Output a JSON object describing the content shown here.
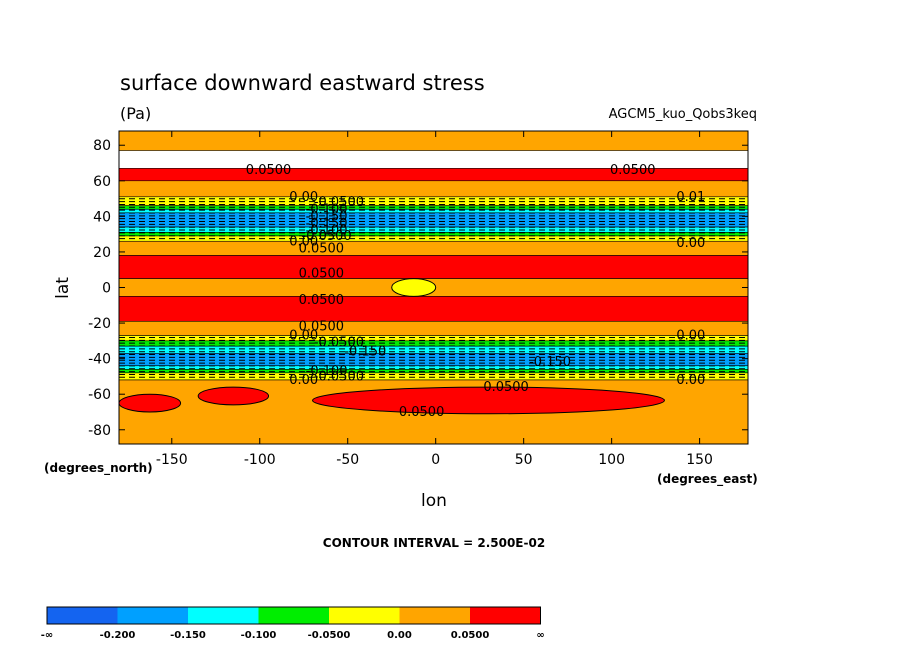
{
  "chart_data": {
    "type": "heatmap",
    "title": "surface downward eastward stress",
    "units": "(Pa)",
    "dataset": "AGCM5_kuo_Qobs3keq",
    "xlabel": "lon",
    "ylabel": "lat",
    "x_unit_note": "(degrees_east)",
    "y_unit_note": "(degrees_north)",
    "xlim": [
      -180,
      177.5
    ],
    "ylim": [
      -88,
      88
    ],
    "x_ticks": [
      -150,
      -100,
      -50,
      0,
      50,
      100,
      150
    ],
    "y_ticks": [
      80,
      60,
      40,
      20,
      0,
      -20,
      -40,
      -60,
      -80
    ],
    "grid": false,
    "contour_interval_text": "CONTOUR INTERVAL = 2.500E-02",
    "colorbar": {
      "colors": [
        "#1464f0",
        "#00a0ff",
        "#00ffff",
        "#00ee00",
        "#ffff00",
        "#ffa500",
        "#ff0000"
      ],
      "labels": [
        "-∞",
        "-0.200",
        "-0.150",
        "-0.100",
        "-0.0500",
        "0.00",
        "0.0500",
        "∞"
      ]
    },
    "zonal_bands": [
      {
        "lat": [
          77,
          88
        ],
        "level": "0.00 to 0.05"
      },
      {
        "lat": [
          60,
          67
        ],
        "level": "> 0.05"
      },
      {
        "lat": [
          51,
          60
        ],
        "level": "0.00 to 0.05"
      },
      {
        "lat": [
          46,
          51
        ],
        "level": "-0.05 to 0.00"
      },
      {
        "lat": [
          44,
          46
        ],
        "level": "-0.10 to -0.05"
      },
      {
        "lat": [
          42,
          44
        ],
        "level": "-0.15 to -0.10"
      },
      {
        "lat": [
          34,
          42
        ],
        "level": "-0.20 to -0.15"
      },
      {
        "lat": [
          31,
          34
        ],
        "level": "-0.15 to -0.10"
      },
      {
        "lat": [
          29,
          31
        ],
        "level": "-0.10 to -0.05"
      },
      {
        "lat": [
          26,
          29
        ],
        "level": "-0.05 to 0.00"
      },
      {
        "lat": [
          18,
          26
        ],
        "level": "0.00 to 0.05"
      },
      {
        "lat": [
          5,
          18
        ],
        "level": "> 0.05"
      },
      {
        "lat": [
          -5,
          5
        ],
        "level": "0.00 to 0.05"
      },
      {
        "lat": [
          -19,
          -5
        ],
        "level": "> 0.05"
      },
      {
        "lat": [
          -27,
          -19
        ],
        "level": "0.00 to 0.05"
      },
      {
        "lat": [
          -30,
          -27
        ],
        "level": "-0.05 to 0.00"
      },
      {
        "lat": [
          -33,
          -30
        ],
        "level": "-0.10 to -0.05"
      },
      {
        "lat": [
          -37,
          -33
        ],
        "level": "-0.15 to -0.10"
      },
      {
        "lat": [
          -44,
          -37
        ],
        "level": "-0.20 to -0.15"
      },
      {
        "lat": [
          -46,
          -44
        ],
        "level": "-0.15 to -0.10"
      },
      {
        "lat": [
          -48,
          -46
        ],
        "level": "-0.10 to -0.05"
      },
      {
        "lat": [
          -52,
          -48
        ],
        "level": "-0.05 to 0.00"
      },
      {
        "lat": [
          -88,
          -52
        ],
        "level": "0.00 to 0.05"
      }
    ],
    "features": [
      {
        "lon": [
          -25,
          0
        ],
        "lat": [
          -5,
          5
        ],
        "level": "-0.05 to 0.00"
      },
      {
        "lon": [
          -135,
          -95
        ],
        "lat": [
          -56,
          -66
        ],
        "level": "> 0.05"
      },
      {
        "lon": [
          -180,
          -145
        ],
        "lat": [
          -60,
          -70
        ],
        "level": "> 0.05"
      },
      {
        "lon": [
          -70,
          130
        ],
        "lat": [
          -56,
          -71
        ],
        "level": "> 0.05"
      }
    ],
    "contour_labels": [
      {
        "text": "0.0500",
        "lon": -95,
        "lat": 66
      },
      {
        "text": "0.0500",
        "lon": 112,
        "lat": 66
      },
      {
        "text": "0.00",
        "lon": -75,
        "lat": 51
      },
      {
        "text": "-0.0500",
        "lon": -55,
        "lat": 48
      },
      {
        "text": "-0.100",
        "lon": -62,
        "lat": 44
      },
      {
        "text": "-0.150",
        "lon": -62,
        "lat": 40
      },
      {
        "text": "-0.150",
        "lon": -62,
        "lat": 36
      },
      {
        "text": "-0.100",
        "lon": -62,
        "lat": 32
      },
      {
        "text": "-0.0500",
        "lon": -62,
        "lat": 29
      },
      {
        "text": "0.00",
        "lon": -75,
        "lat": 26
      },
      {
        "text": "0.0500",
        "lon": -65,
        "lat": 22
      },
      {
        "text": "0.01",
        "lon": 145,
        "lat": 51
      },
      {
        "text": "0.00",
        "lon": 145,
        "lat": 25
      },
      {
        "text": "0.0500",
        "lon": -65,
        "lat": 8
      },
      {
        "text": "0.0500",
        "lon": -65,
        "lat": -7
      },
      {
        "text": "0.0500",
        "lon": -65,
        "lat": -22
      },
      {
        "text": "0.00",
        "lon": -75,
        "lat": -27
      },
      {
        "text": "-0.0500",
        "lon": -55,
        "lat": -31
      },
      {
        "text": "-0.150",
        "lon": -40,
        "lat": -36
      },
      {
        "text": "-0.150",
        "lon": 65,
        "lat": -42
      },
      {
        "text": "0.00",
        "lon": 145,
        "lat": -27
      },
      {
        "text": "0.00",
        "lon": 145,
        "lat": -52
      },
      {
        "text": "-0.100",
        "lon": -62,
        "lat": -47
      },
      {
        "text": "-0.0500",
        "lon": -55,
        "lat": -50
      },
      {
        "text": "0.00",
        "lon": -75,
        "lat": -52
      },
      {
        "text": "0.0500",
        "lon": 40,
        "lat": -56
      },
      {
        "text": "0.0500",
        "lon": -8,
        "lat": -70
      }
    ]
  }
}
